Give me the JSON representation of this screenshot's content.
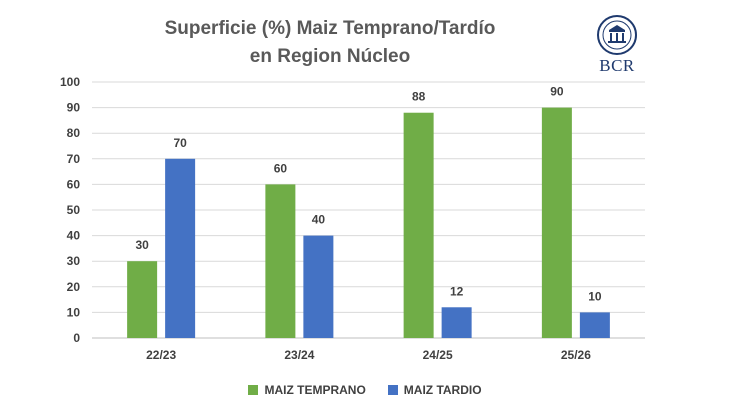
{
  "chart_data": {
    "type": "bar",
    "title": "Superficie (%) Maiz Temprano/Tardío",
    "subtitle": "en Region Núcleo",
    "categories": [
      "22/23",
      "23/24",
      "24/25",
      "25/26"
    ],
    "series": [
      {
        "name": "MAIZ TEMPRANO",
        "color": "#70ad47",
        "values": [
          30,
          60,
          88,
          90
        ]
      },
      {
        "name": "MAIZ TARDIO",
        "color": "#4472c4",
        "values": [
          70,
          40,
          12,
          10
        ]
      }
    ],
    "ylim": [
      0,
      100
    ],
    "yticks": [
      0,
      10,
      20,
      30,
      40,
      50,
      60,
      70,
      80,
      90,
      100
    ],
    "grid": true,
    "legend": "bottom",
    "xlabel": "",
    "ylabel": ""
  },
  "logo": {
    "text": "BCR",
    "icon": "bcr-seal-icon",
    "color": "#1f3a6e"
  }
}
